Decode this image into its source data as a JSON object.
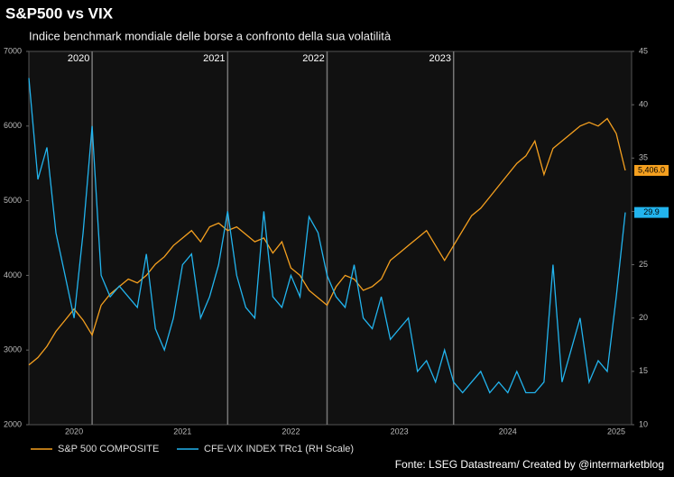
{
  "chart_data": {
    "type": "line",
    "title": "S&P500 vs VIX",
    "subtitle": "Indice benchmark mondiale delle borse a confronto della sua volatilità",
    "source": "Fonte: LSEG Datastream/ Created by @intermarketblog",
    "categories": [
      null,
      null,
      null,
      null,
      null,
      "2020",
      null,
      null,
      null,
      null,
      null,
      null,
      null,
      null,
      null,
      null,
      null,
      "2021",
      null,
      null,
      null,
      null,
      null,
      null,
      null,
      null,
      null,
      null,
      null,
      "2022",
      null,
      null,
      null,
      null,
      null,
      null,
      null,
      null,
      null,
      null,
      null,
      "2023",
      null,
      null,
      null,
      null,
      null,
      null,
      null,
      null,
      null,
      null,
      null,
      "2024",
      null,
      null,
      null,
      null,
      null,
      null,
      null,
      null,
      null,
      null,
      null,
      "2025",
      null
    ],
    "series": [
      {
        "name": "S&P 500 COMPOSITE",
        "color": "#f5a01f",
        "axis": "y",
        "values": [
          2800,
          2900,
          3050,
          3250,
          3400,
          3550,
          3400,
          3200,
          3600,
          3750,
          3850,
          3950,
          3900,
          4000,
          4150,
          4250,
          4400,
          4500,
          4600,
          4450,
          4650,
          4700,
          4600,
          4650,
          4550,
          4450,
          4500,
          4300,
          4450,
          4100,
          4000,
          3800,
          3700,
          3600,
          3850,
          4000,
          3950,
          3800,
          3850,
          3950,
          4200,
          4300,
          4400,
          4500,
          4600,
          4400,
          4200,
          4400,
          4600,
          4800,
          4900,
          5050,
          5200,
          5350,
          5500,
          5600,
          5800,
          5350,
          5700,
          5800,
          5900,
          6000,
          6050,
          6000,
          6100,
          5900,
          5406
        ],
        "end_label": "5,406.0"
      },
      {
        "name": "CFE-VIX INDEX TRc1 (RH Scale)",
        "color": "#22b4ee",
        "axis": "y2",
        "values": [
          42.5,
          33,
          36,
          28,
          24,
          20,
          28,
          38,
          24,
          22,
          23,
          22,
          21,
          26,
          19,
          17,
          20,
          25,
          26,
          20,
          22,
          25,
          30,
          24,
          21,
          20,
          30,
          22,
          21,
          24,
          22,
          29.5,
          28,
          24,
          22,
          21,
          25,
          20,
          19,
          22,
          18,
          19,
          20,
          15,
          16,
          14,
          17,
          14,
          13,
          14,
          15,
          13,
          14,
          13,
          15,
          13,
          13,
          14,
          25,
          14,
          17,
          20,
          14,
          16,
          15,
          22,
          29.9
        ]
      }
    ],
    "annotations": [
      {
        "label": "2020",
        "index": 7
      },
      {
        "label": "2021",
        "index": 22
      },
      {
        "label": "2022",
        "index": 33
      },
      {
        "label": "2023",
        "index": 47
      }
    ],
    "ylim": [
      2000,
      7000
    ],
    "yticks": [
      2000,
      3000,
      4000,
      5000,
      6000,
      7000
    ],
    "y2lim": [
      10,
      45
    ],
    "y2ticks": [
      10,
      15,
      20,
      25,
      30,
      35,
      40,
      45
    ]
  }
}
